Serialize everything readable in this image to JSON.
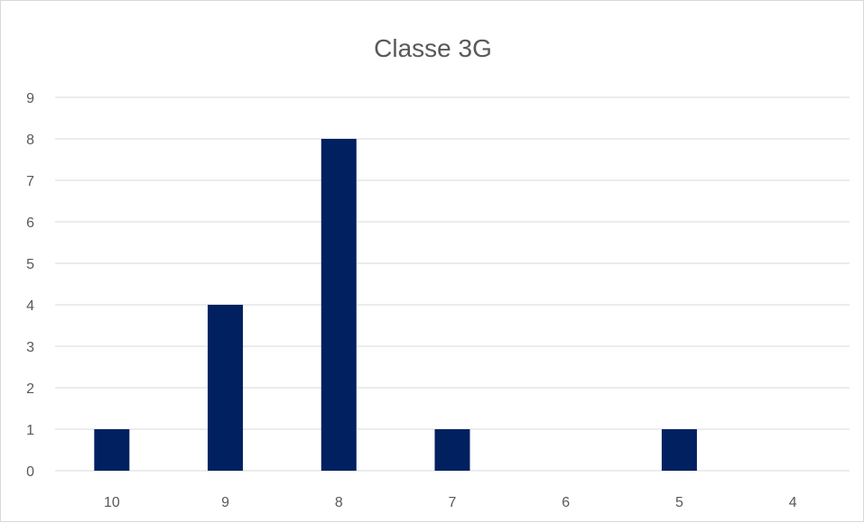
{
  "chart_data": {
    "type": "bar",
    "title": "Classe 3G",
    "xlabel": "",
    "ylabel": "",
    "categories": [
      "10",
      "9",
      "8",
      "7",
      "6",
      "5",
      "4"
    ],
    "values": [
      1,
      4,
      8,
      1,
      0,
      1,
      0
    ],
    "ylim": [
      0,
      9
    ],
    "yticks": [
      0,
      1,
      2,
      3,
      4,
      5,
      6,
      7,
      8,
      9
    ],
    "grid": true,
    "legend": "none",
    "bar_color": "#002060",
    "grid_color": "#d9d9d9",
    "text_color": "#595959"
  }
}
